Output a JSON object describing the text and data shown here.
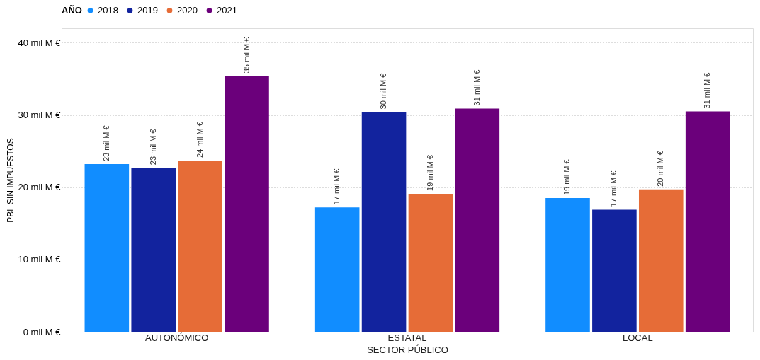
{
  "chart_data": {
    "type": "bar",
    "categories": [
      "AUTONÓMICO",
      "ESTATAL",
      "LOCAL"
    ],
    "xlabel": "SECTOR PÚBLICO",
    "ylabel": "PBL SIN IMPUESTOS",
    "legend_title": "AÑO",
    "series": [
      {
        "name": "2018",
        "color": "#118dff",
        "values": [
          23.2,
          17.2,
          18.5
        ],
        "value_labels": [
          "23 mil M €",
          "17 mil M €",
          "19 mil M €"
        ]
      },
      {
        "name": "2019",
        "color": "#12239e",
        "values": [
          22.7,
          30.4,
          16.9
        ],
        "value_labels": [
          "23 mil M €",
          "30 mil M €",
          "17 mil M €"
        ]
      },
      {
        "name": "2020",
        "color": "#e66c37",
        "values": [
          23.7,
          19.1,
          19.7
        ],
        "value_labels": [
          "24 mil M €",
          "19 mil M €",
          "20 mil M €"
        ]
      },
      {
        "name": "2021",
        "color": "#6b007b",
        "values": [
          35.4,
          30.9,
          30.5
        ],
        "value_labels": [
          "35 mil M €",
          "31 mil M €",
          "31 mil M €"
        ]
      }
    ],
    "ylim": [
      0,
      42
    ],
    "yticks": [
      {
        "value": 0,
        "label": "0 mil M €"
      },
      {
        "value": 10,
        "label": "10 mil M €"
      },
      {
        "value": 20,
        "label": "20 mil M €"
      },
      {
        "value": 30,
        "label": "30 mil M €"
      },
      {
        "value": 40,
        "label": "40 mil M €"
      }
    ],
    "grid": "y",
    "legend": "top"
  }
}
